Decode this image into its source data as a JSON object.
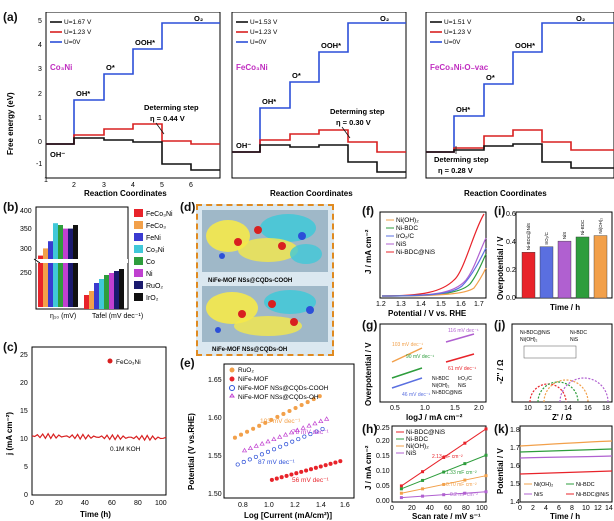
{
  "figure": {
    "panel_labels": [
      "(a)",
      "(b)",
      "(c)",
      "(d)",
      "(e)",
      "(f)",
      "(g)",
      "(h)",
      "(i)",
      "(j)",
      "(k)"
    ]
  },
  "panel_a": {
    "ylabel": "Free energy (eV)",
    "xlabel": "Reaction Coordinates",
    "x_ticks": [
      "1",
      "2",
      "3",
      "4",
      "5",
      "6"
    ],
    "y_ticks": [
      "-1",
      "0",
      "1",
      "2",
      "3",
      "4",
      "5"
    ],
    "species_labels": [
      "OH⁻",
      "OH*",
      "O*",
      "OOH*",
      "O₂"
    ],
    "subpanels": [
      {
        "name": "Co₃Ni",
        "legend": [
          "U=1.67 V",
          "U=1.23 V",
          "U=0V"
        ],
        "annotation": "Determing step",
        "eta": "η = 0.44 V"
      },
      {
        "name": "FeCo₃Ni",
        "legend": [
          "U=1.53 V",
          "U=1.23 V",
          "U=0V"
        ],
        "annotation": "Determing step",
        "eta": "η = 0.30 V"
      },
      {
        "name": "FeCo₃Ni-O₋vac",
        "legend": [
          "U=1.51 V",
          "U=1.23 V",
          "U=0V"
        ],
        "annotation": "Determing step",
        "eta": "η = 0.28 V"
      }
    ]
  },
  "panel_b": {
    "legend": [
      "FeCo₃Ni",
      "FeCo₃",
      "FeNi",
      "Co₃Ni",
      "Co",
      "Ni",
      "RuO₂",
      "IrO₂"
    ],
    "x_groups": [
      "η₁₀ (mV)",
      "Tafel (mV dec⁻¹)"
    ],
    "y_ticks": [
      "250",
      "300",
      "350",
      "400",
      "0",
      "50",
      "100",
      "150",
      "200"
    ]
  },
  "panel_c": {
    "ylabel": "j (mA cm⁻²)",
    "xlabel": "Time (h)",
    "legend": "FeCo₃Ni",
    "electrolyte": "0.1M KOH",
    "x_ticks": [
      "0",
      "20",
      "40",
      "60",
      "80",
      "100"
    ],
    "y_ticks": [
      "0",
      "5",
      "10",
      "15",
      "20",
      "25"
    ]
  },
  "panel_d": {
    "caption_top": "NiFe-MOF NSs@CQDs-COOH",
    "caption_bottom": "NiFe-MOF NSs@CQDs-OH"
  },
  "panel_e": {
    "ylabel": "Potential (V vs.RHE)",
    "xlabel": "Log [Current (mA/cm²)]",
    "legend": [
      "RuO₂",
      "NiFe-MOF",
      "NiFe-MOF NSs@CQDs-COOH",
      "NiFe-MOF NSs@CQDs-OH"
    ],
    "slopes": [
      "103 mV dec⁻¹",
      "78 mV dec⁻¹",
      "87 mV dec⁻¹",
      "56 mV dec⁻¹"
    ],
    "x_ticks": [
      "0.8",
      "1.0",
      "1.2",
      "1.4",
      "1.6"
    ],
    "y_ticks": [
      "1.50",
      "1.55",
      "1.60",
      "1.65"
    ]
  },
  "panel_f": {
    "ylabel": "J / mA cm⁻²",
    "xlabel": "Potential / V vs. RHE",
    "legend": [
      "Ni(OH)₂",
      "Ni-BDC",
      "IrO₂/C",
      "NiS",
      "Ni-BDC@NiS"
    ],
    "x_ticks": [
      "1.2",
      "1.3",
      "1.4",
      "1.5",
      "1.6",
      "1.7"
    ]
  },
  "panel_g": {
    "ylabel": "Overpotential / V",
    "xlabel": "logJ / mA cm⁻²",
    "legend": [
      "Ni-BDC",
      "Ni(OH)₂",
      "IrO₂/C",
      "NiS",
      "Ni-BDC@NiS"
    ],
    "slopes": [
      "103 mV dec⁻¹",
      "116 mV dec⁻¹",
      "61 mV dec⁻¹",
      "90 mV dec⁻¹",
      "46 mV dec⁻¹"
    ],
    "x_ticks": [
      "0.5",
      "1.0",
      "1.5",
      "2.0"
    ]
  },
  "panel_h": {
    "ylabel": "J / mA cm⁻²",
    "xlabel": "Scan rate / mV s⁻¹",
    "legend": [
      "Ni-BDC@NiS",
      "Ni-BDC",
      "Ni(OH)₂",
      "NiS"
    ],
    "slopes": [
      "2.13 mF cm⁻²",
      "1.33 mF cm⁻²",
      "0.70 mF cm⁻²",
      "0.2 mF cm⁻²"
    ],
    "x_ticks": [
      "0",
      "20",
      "40",
      "60",
      "80",
      "100"
    ],
    "y_ticks": [
      "0.00",
      "0.05",
      "0.10",
      "0.15",
      "0.20",
      "0.25"
    ]
  },
  "panel_i": {
    "ylabel": "Overpotential / V",
    "xlabel": "Time / h",
    "bar_labels": [
      "Ni-BDC@NiS",
      "IrO₂/C",
      "NiS",
      "Ni-BDC",
      "Ni(OH)₂"
    ],
    "values": [
      0.33,
      0.37,
      0.41,
      0.44,
      0.45
    ],
    "y_ticks": [
      "0.0",
      "0.2",
      "0.4",
      "0.6"
    ],
    "colors": [
      "#e8232a",
      "#5a6fe0",
      "#b060d0",
      "#2e9d3c",
      "#f2a04a"
    ]
  },
  "panel_j": {
    "ylabel": "-Z'' / Ω",
    "xlabel": "Z' / Ω",
    "legend": [
      "Ni-BDC@NiS",
      "Ni-BDC",
      "Ni(OH)₂",
      "NiS"
    ],
    "x_ticks": [
      "10",
      "12",
      "14",
      "16",
      "18"
    ]
  },
  "panel_k": {
    "ylabel": "Potential / V",
    "xlabel": "Time / h",
    "legend": [
      "Ni(OH)₂",
      "Ni-BDC",
      "NiS",
      "Ni-BDC@NiS"
    ],
    "x_ticks": [
      "0",
      "2",
      "4",
      "6",
      "8",
      "10",
      "12",
      "14"
    ],
    "y_ticks": [
      "1.4",
      "1.5",
      "1.6",
      "1.7",
      "1.8"
    ]
  }
}
